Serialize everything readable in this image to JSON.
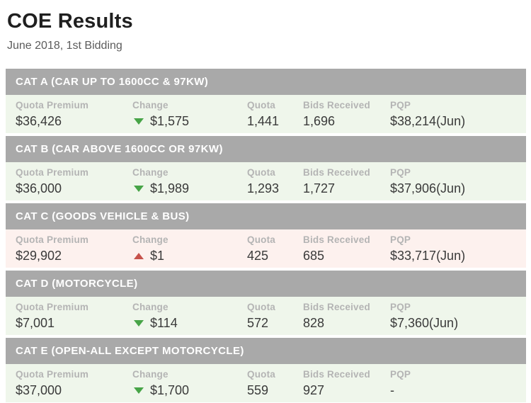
{
  "page": {
    "title": "COE Results",
    "subtitle": "June 2018, 1st Bidding"
  },
  "columns": {
    "quota_premium": "Quota Premium",
    "change": "Change",
    "quota": "Quota",
    "bids_received": "Bids Received",
    "pqp": "PQP"
  },
  "colors": {
    "header_bg": "#a9a9a9",
    "row_green": "#eff6eb",
    "row_red": "#fdf1ee",
    "arrow_up": "#c6524b",
    "arrow_down": "#47a447"
  },
  "categories": [
    {
      "name": "CAT A (CAR UP TO 1600CC & 97KW)",
      "quota_premium": "$36,426",
      "change_direction": "down",
      "change": "$1,575",
      "quota": "1,441",
      "bids_received": "1,696",
      "pqp": "$38,214(Jun)",
      "row_tint": "green"
    },
    {
      "name": "CAT B (CAR ABOVE 1600CC OR 97KW)",
      "quota_premium": "$36,000",
      "change_direction": "down",
      "change": "$1,989",
      "quota": "1,293",
      "bids_received": "1,727",
      "pqp": "$37,906(Jun)",
      "row_tint": "green"
    },
    {
      "name": "CAT C (GOODS VEHICLE & BUS)",
      "quota_premium": "$29,902",
      "change_direction": "up",
      "change": "$1",
      "quota": "425",
      "bids_received": "685",
      "pqp": "$33,717(Jun)",
      "row_tint": "red"
    },
    {
      "name": "CAT D (MOTORCYCLE)",
      "quota_premium": "$7,001",
      "change_direction": "down",
      "change": "$114",
      "quota": "572",
      "bids_received": "828",
      "pqp": "$7,360(Jun)",
      "row_tint": "green"
    },
    {
      "name": "CAT E (OPEN-ALL EXCEPT MOTORCYCLE)",
      "quota_premium": "$37,000",
      "change_direction": "down",
      "change": "$1,700",
      "quota": "559",
      "bids_received": "927",
      "pqp": "-",
      "row_tint": "green"
    }
  ]
}
